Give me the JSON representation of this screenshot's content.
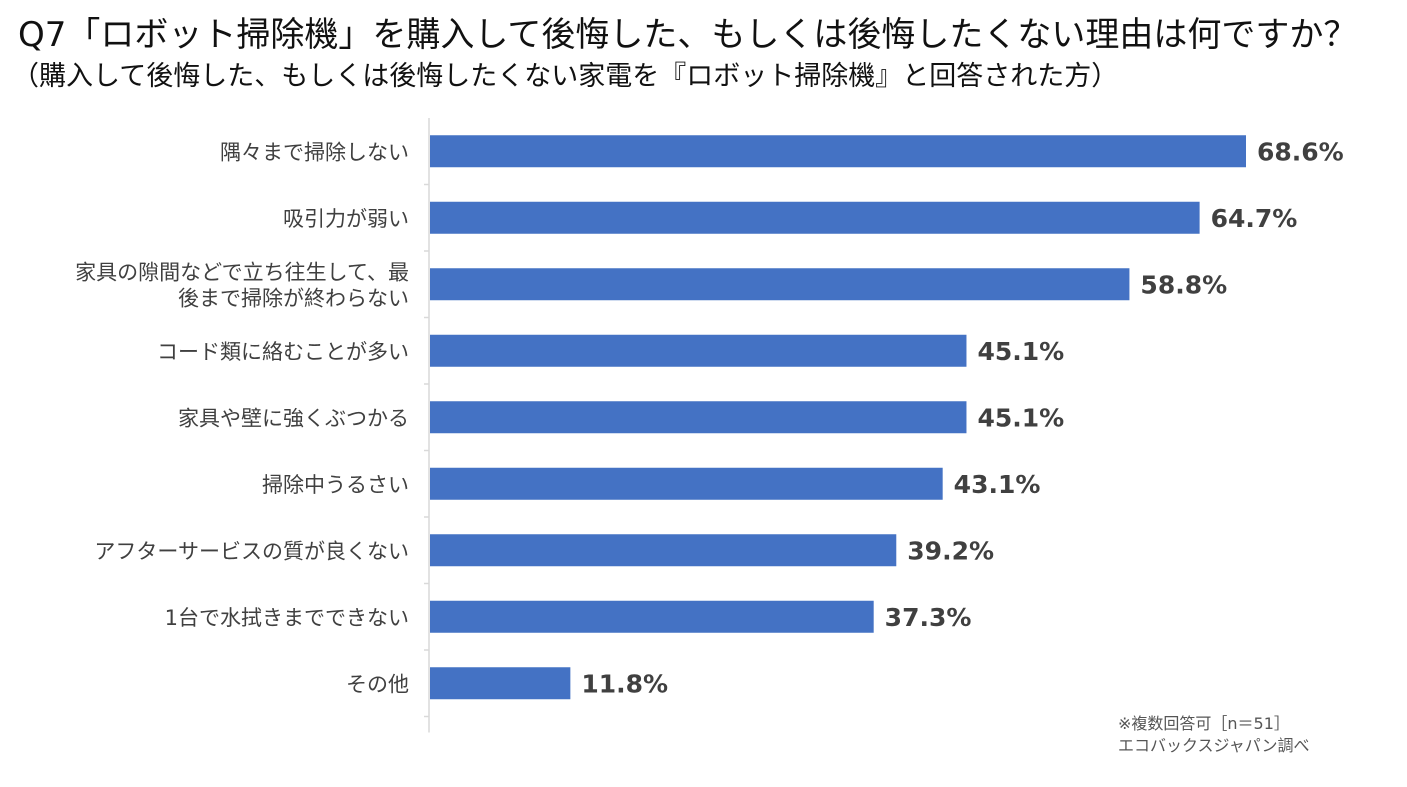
{
  "title": "Q7「ロボット掃除機」を購入して後悔した、もしくは後悔したくない理由は何ですか？",
  "subtitle": "（購入して後悔した、もしくは後悔したくない家電を『ロボット掃除機』と回答された方）",
  "chart_data": {
    "type": "bar",
    "orientation": "horizontal",
    "title": "Q7「ロボット掃除機」を購入して後悔した、もしくは後悔したくない理由は何ですか？",
    "categories": [
      [
        "隅々まで掃除しない"
      ],
      [
        "吸引力が弱い"
      ],
      [
        "家具の隙間などで立ち往生して、最",
        "後まで掃除が終わらない"
      ],
      [
        "コード類に絡むことが多い"
      ],
      [
        "家具や壁に強くぶつかる"
      ],
      [
        "掃除中うるさい"
      ],
      [
        "アフターサービスの質が良くない"
      ],
      [
        "1台で水拭きまでできない"
      ],
      [
        "その他"
      ]
    ],
    "values": [
      68.6,
      64.7,
      58.8,
      45.1,
      45.1,
      43.1,
      39.2,
      37.3,
      11.8
    ],
    "value_labels": [
      "68.6%",
      "64.7%",
      "58.8%",
      "45.1%",
      "45.1%",
      "43.1%",
      "39.2%",
      "37.3%",
      "11.8%"
    ],
    "xlim": [
      0,
      80
    ],
    "grid": false,
    "bar_color": "#4472C4"
  },
  "notes": {
    "line1": "※複数回答可［n＝51］",
    "line2": "エコバックスジャパン調べ"
  }
}
